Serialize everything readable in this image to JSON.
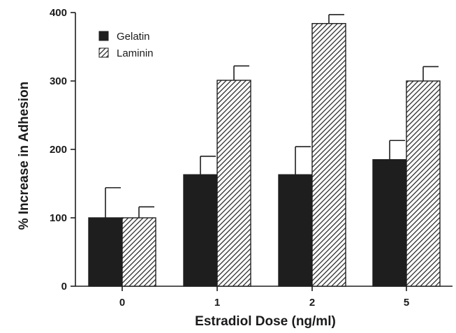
{
  "chart_data": {
    "type": "bar",
    "title": "",
    "xlabel": "Estradiol Dose (ng/ml)",
    "ylabel": "% Increase in Adhesion",
    "categories": [
      "0",
      "1",
      "2",
      "5"
    ],
    "ylim": [
      0,
      400
    ],
    "yticks": [
      0,
      100,
      200,
      300,
      400
    ],
    "grid": false,
    "legend_position": "top-left",
    "series": [
      {
        "name": "Gelatin",
        "values": [
          100,
          163,
          163,
          185
        ],
        "error": [
          44,
          27,
          41,
          28
        ],
        "fill": "solid",
        "color": "#1e1e1e"
      },
      {
        "name": "Laminin",
        "values": [
          100,
          301,
          384,
          300
        ],
        "error": [
          16,
          21,
          13,
          21
        ],
        "fill": "diagonal-hatch",
        "color": "#1e1e1e"
      }
    ]
  }
}
